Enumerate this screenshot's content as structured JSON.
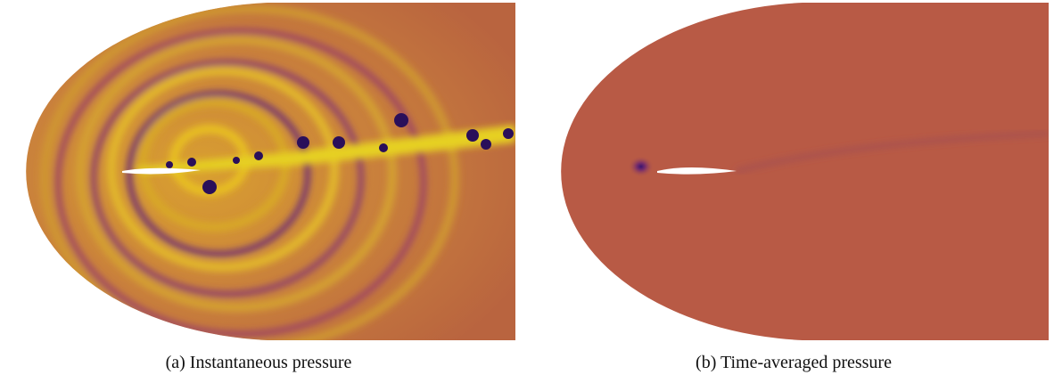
{
  "figures": [
    {
      "caption": "(a) Instantaneous pressure"
    },
    {
      "caption": "(b) Time-averaged pressure"
    }
  ]
}
